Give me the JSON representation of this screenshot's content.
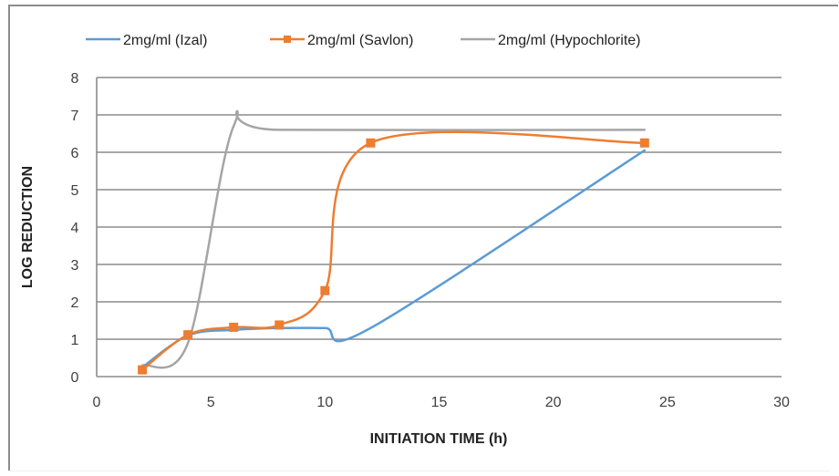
{
  "chart_data": {
    "type": "line",
    "title": "",
    "xlabel": "INITIATION TIME (h)",
    "ylabel": "LOG REDUCTION",
    "xlim": [
      0,
      30
    ],
    "ylim": [
      0,
      8
    ],
    "xticks": [
      0,
      5,
      10,
      15,
      20,
      25,
      30
    ],
    "yticks": [
      0,
      1,
      2,
      3,
      4,
      5,
      6,
      7,
      8
    ],
    "grid": "horizontal",
    "legend_position": "top",
    "smooth": true,
    "series": [
      {
        "name": "2mg/ml (Izal)",
        "color": "#5b9bd5",
        "marker": "none",
        "x": [
          2,
          4,
          6,
          8,
          10,
          12,
          24
        ],
        "y": [
          0.25,
          1.1,
          1.25,
          1.3,
          1.3,
          1.3,
          6.05
        ]
      },
      {
        "name": "2mg/ml (Savlon)",
        "color": "#ed7d31",
        "marker": "square",
        "x": [
          2,
          4,
          6,
          8,
          10,
          12,
          24
        ],
        "y": [
          0.18,
          1.12,
          1.32,
          1.38,
          2.3,
          6.25,
          6.25
        ]
      },
      {
        "name": "2mg/ml (Hypochlorite)",
        "color": "#a5a5a5",
        "marker": "none",
        "x": [
          2,
          4,
          6,
          8,
          24
        ],
        "y": [
          0.3,
          0.9,
          6.7,
          6.6,
          6.6
        ]
      }
    ]
  }
}
